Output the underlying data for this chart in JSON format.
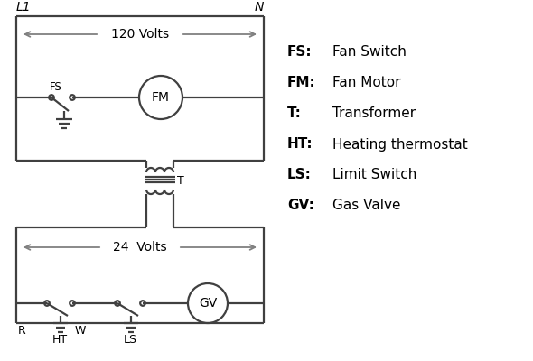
{
  "bg_color": "#ffffff",
  "line_color": "#404040",
  "arrow_color": "#808080",
  "text_color": "#000000",
  "legend_items": [
    [
      "FS:",
      "Fan Switch"
    ],
    [
      "FM:",
      "Fan Motor"
    ],
    [
      "T:",
      "Transformer"
    ],
    [
      "HT:",
      "Heating thermostat"
    ],
    [
      "LS:",
      "Limit Switch"
    ],
    [
      "GV:",
      "Gas Valve"
    ]
  ],
  "volts_120_label": "120 Volts",
  "volts_24_label": "24  Volts",
  "L1_label": "L1",
  "N_label": "N",
  "T_label": "T",
  "R_label": "R",
  "W_label": "W",
  "HT_label": "HT",
  "LS_label": "LS",
  "FS_label": "FS",
  "FM_label": "FM",
  "GV_label": "GV"
}
